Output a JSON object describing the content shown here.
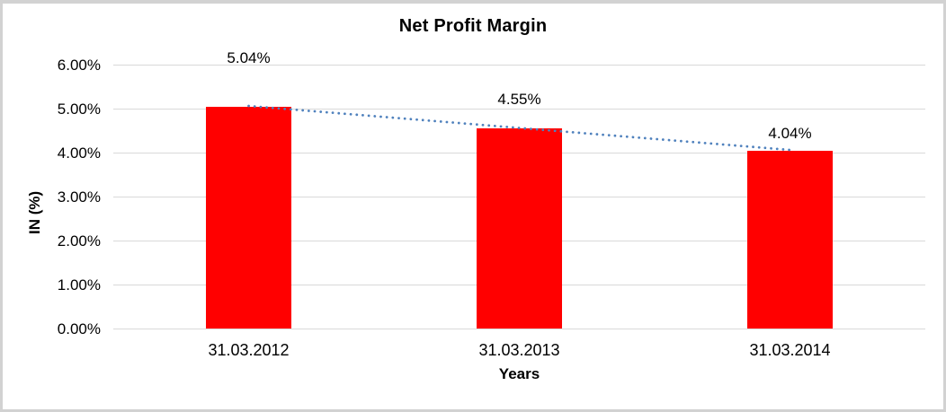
{
  "chart_data": {
    "type": "bar",
    "title": "Net Profit Margin",
    "xlabel": "Years",
    "ylabel": "IN (%)",
    "categories": [
      "31.03.2012",
      "31.03.2013",
      "31.03.2014"
    ],
    "series": [
      {
        "name": "Net Profit Margin",
        "values": [
          5.04,
          4.55,
          4.04
        ]
      }
    ],
    "data_labels": [
      "5.04%",
      "4.55%",
      "4.04%"
    ],
    "ylim": [
      0,
      6
    ],
    "ytick_step": 1,
    "ytick_labels": [
      "0.00%",
      "1.00%",
      "2.00%",
      "3.00%",
      "4.00%",
      "5.00%",
      "6.00%"
    ],
    "grid": true,
    "legend": "none",
    "bar_color": "#ff0000",
    "gridline_color": "#d9d9d9",
    "trendline": {
      "type": "linear",
      "style": "dotted",
      "color": "#4f81bd"
    }
  }
}
